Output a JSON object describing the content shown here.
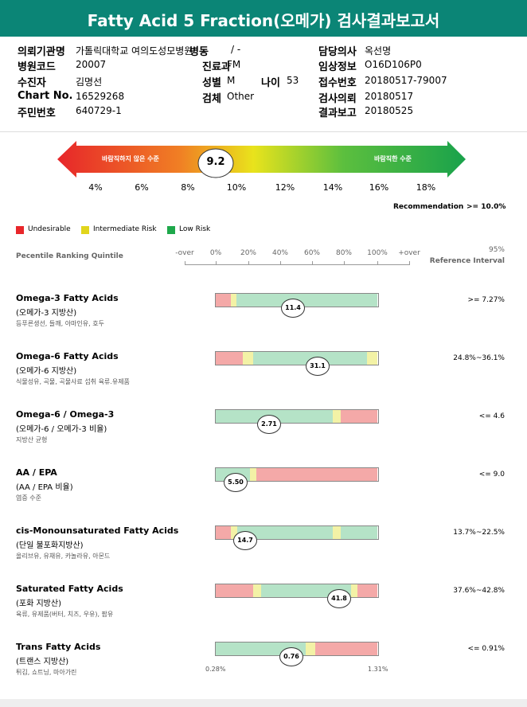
{
  "header": {
    "title": "Fatty Acid 5 Fraction(오메가) 검사결과보고서"
  },
  "info": [
    [
      {
        "label": "의뢰기관명",
        "value": "가톨릭대학교 여의도성모병원"
      },
      {
        "label": "병동",
        "value": "/ -"
      },
      {
        "label": "담당의사",
        "value": "옥선명"
      }
    ],
    [
      {
        "label": "병원코드",
        "value": "20007"
      },
      {
        "label": "진료과",
        "value": "FM"
      },
      {
        "label": "임상정보",
        "value": "O16D106P0"
      }
    ],
    [
      {
        "label": "수진자",
        "value": "김명선"
      },
      {
        "label": "성별",
        "value": "M"
      },
      {
        "label": "나이",
        "value": "53"
      },
      {
        "label": "접수번호",
        "value": "20180517-79007"
      }
    ],
    [
      {
        "label": "Chart No.",
        "value": "16529268"
      },
      {
        "label": "검체",
        "value": "Other"
      },
      {
        "label": "검사의뢰",
        "value": "20180517"
      }
    ],
    [
      {
        "label": "주민번호",
        "value": "640729-1"
      },
      {
        "label": "결과보고",
        "value": "20180525"
      }
    ]
  ],
  "gauge": {
    "left": "바람직하지 않은 수준",
    "right": "바람직한 수준",
    "value": "9.2",
    "ticks": [
      "4%",
      "6%",
      "8%",
      "10%",
      "12%",
      "14%",
      "16%",
      "18%"
    ],
    "recommendation_label": "Recommendation",
    "recommendation": ">= 10.0%"
  },
  "legend": [
    "Undesirable",
    "Intermediate Risk",
    "Low Risk"
  ],
  "scale": {
    "title": "Pecentile Ranking Quintile",
    "ticks": [
      "-over",
      "0%",
      "20%",
      "40%",
      "60%",
      "80%",
      "100%",
      "+over"
    ],
    "ref_title": [
      "95%",
      "Reference Interval"
    ]
  },
  "items": [
    {
      "name": "Omega-3 Fatty Acids",
      "sub": "(오메가-3 지방산)",
      "foods": "등푸른생선, 들깨, 아마인유, 호두",
      "value": "11.4",
      "ref": ">= 7.27%"
    },
    {
      "name": "Omega-6 Fatty Acids",
      "sub": "(오메가-6 지방산)",
      "foods": "식물성유, 곡물, 곡물사료 섭취 육류.유제품",
      "value": "31.1",
      "ref": "24.8%~36.1%"
    },
    {
      "name": "Omega-6 / Omega-3",
      "sub": "(오메가-6 / 오메가-3 비율)",
      "foods": "지방산 균형",
      "value": "2.71",
      "ref": "<= 4.6"
    },
    {
      "name": "AA / EPA",
      "sub": "(AA / EPA 비율)",
      "foods": "염증 수준",
      "value": "5.50",
      "ref": "<= 9.0"
    },
    {
      "name": "cis-Monounsaturated Fatty Acids",
      "sub": "(단일 불포화지방산)",
      "foods": "올리브유, 유채유, 카놀라유, 아몬드",
      "value": "14.7",
      "ref": "13.7%~22.5%"
    },
    {
      "name": "Saturated Fatty Acids",
      "sub": "(포화 지방산)",
      "foods": "육류, 유제품(버터, 치즈, 우유), 팜유",
      "value": "41.8",
      "ref": "37.6%~42.8%"
    },
    {
      "name": "Trans Fatty Acids",
      "sub": "(트랜스 지방산)",
      "foods": "튀김, 쇼트닝, 마아가린",
      "value": "0.76",
      "ref": "<= 0.91%",
      "range": [
        "0.28%",
        "1.31%"
      ]
    }
  ]
}
